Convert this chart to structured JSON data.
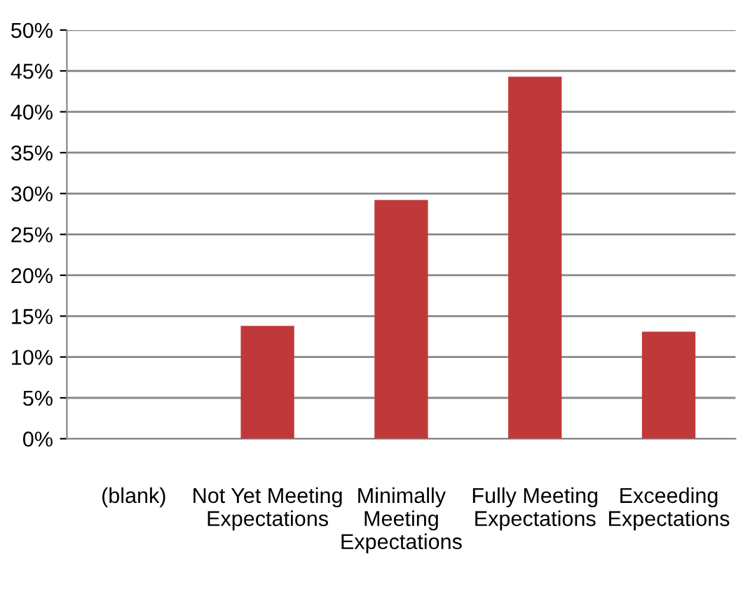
{
  "chart_data": {
    "type": "bar",
    "categories": [
      "(blank)",
      "Not Yet Meeting\nExpectations",
      "Minimally\nMeeting\nExpectations",
      "Fully Meeting\nExpectations",
      "Exceeding\nExpectations"
    ],
    "values": [
      0,
      13.8,
      29.2,
      44.3,
      13.1
    ],
    "color": "#c0393a",
    "ylim": [
      0,
      50
    ],
    "yticks": [
      {
        "value": 0,
        "label": "0%"
      },
      {
        "value": 5,
        "label": "5%"
      },
      {
        "value": 10,
        "label": "10%"
      },
      {
        "value": 15,
        "label": "15%"
      },
      {
        "value": 20,
        "label": "20%"
      },
      {
        "value": 25,
        "label": "25%"
      },
      {
        "value": 30,
        "label": "30%"
      },
      {
        "value": 35,
        "label": "35%"
      },
      {
        "value": 40,
        "label": "40%"
      },
      {
        "value": 45,
        "label": "45%"
      },
      {
        "value": 50,
        "label": "50%"
      }
    ],
    "grid": "y"
  }
}
